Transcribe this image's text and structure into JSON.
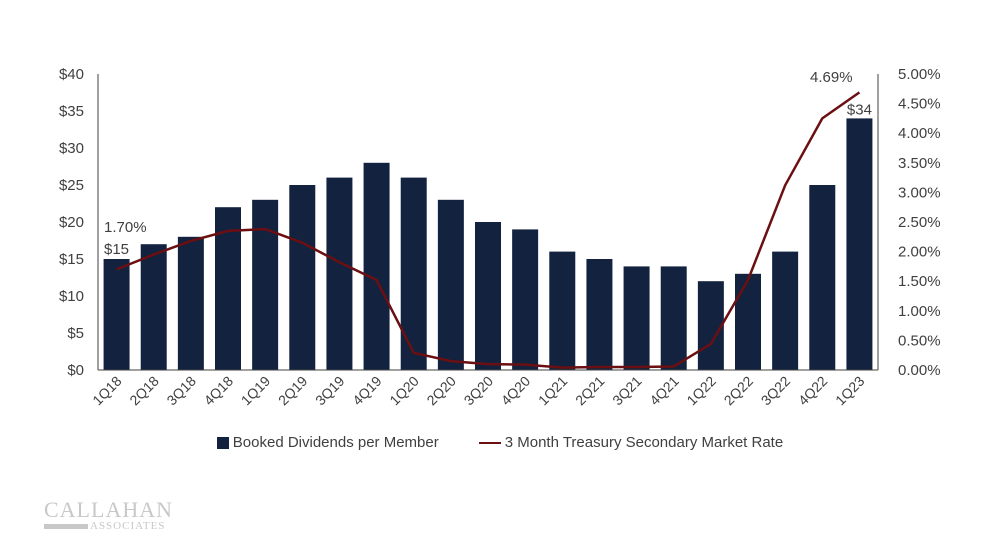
{
  "chart_data": {
    "type": "bar+line",
    "categories": [
      "1Q18",
      "2Q18",
      "3Q18",
      "4Q18",
      "1Q19",
      "2Q19",
      "3Q19",
      "4Q19",
      "1Q20",
      "2Q20",
      "3Q20",
      "4Q20",
      "1Q21",
      "2Q21",
      "3Q21",
      "4Q21",
      "1Q22",
      "2Q22",
      "3Q22",
      "4Q22",
      "1Q23"
    ],
    "series": [
      {
        "name": "Booked Dividends per Member",
        "type": "bar",
        "axis": "left",
        "color": "#13233f",
        "values": [
          15,
          17,
          18,
          22,
          23,
          25,
          26,
          28,
          26,
          23,
          20,
          19,
          16,
          15,
          14,
          14,
          12,
          13,
          16,
          25,
          34
        ]
      },
      {
        "name": "3 Month Treasury Secondary Market Rate",
        "type": "line",
        "axis": "right",
        "color": "#6b0f12",
        "values": [
          1.7,
          1.95,
          2.18,
          2.35,
          2.38,
          2.15,
          1.82,
          1.52,
          0.29,
          0.15,
          0.1,
          0.09,
          0.04,
          0.05,
          0.05,
          0.06,
          0.44,
          1.52,
          3.12,
          4.25,
          4.69
        ]
      }
    ],
    "y_left": {
      "range": [
        0,
        40
      ],
      "ticks": [
        "$0",
        "$5",
        "$10",
        "$15",
        "$20",
        "$25",
        "$30",
        "$35",
        "$40"
      ]
    },
    "y_right": {
      "range": [
        0,
        5
      ],
      "ticks": [
        "0.00%",
        "0.50%",
        "1.00%",
        "1.50%",
        "2.00%",
        "2.50%",
        "3.00%",
        "3.50%",
        "4.00%",
        "4.50%",
        "5.00%"
      ]
    },
    "annotations": {
      "first_rate": "1.70%",
      "first_bar": "$15",
      "last_rate": "4.69%",
      "last_bar": "$34"
    },
    "grid": false,
    "legend_position": "bottom"
  },
  "logo": {
    "line1": "CALLAHAN",
    "line2": "& ASSOCIATES"
  }
}
